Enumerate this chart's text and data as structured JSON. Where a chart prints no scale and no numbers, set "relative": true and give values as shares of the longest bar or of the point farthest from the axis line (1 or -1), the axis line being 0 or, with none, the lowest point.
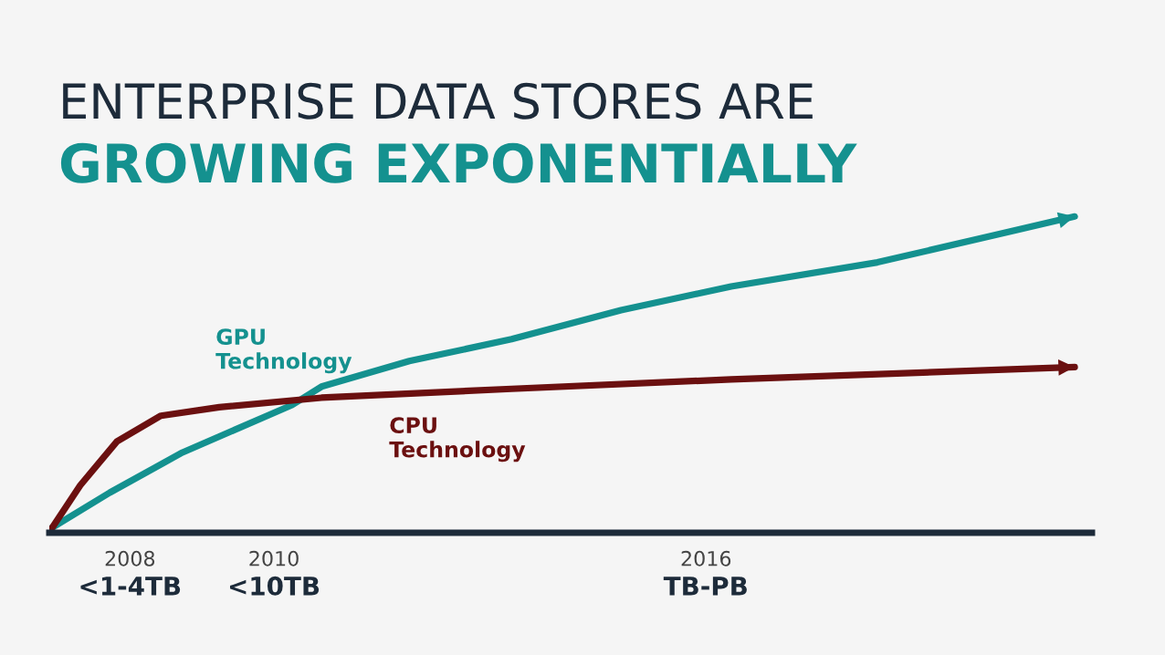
{
  "chart_data": {
    "type": "line",
    "title": "ENTERPRISE DATA STORES ARE",
    "subtitle": "GROWING EXPONENTIALLY",
    "relative": true,
    "xlim": [
      2006.88,
      2021.36
    ],
    "xticks": [
      2008,
      2010,
      2016
    ],
    "annotations": [
      "<1-4TB",
      "<10TB",
      "TB-PB"
    ],
    "series": [
      {
        "name": "GPU\nTechnology",
        "color": "#14918f",
        "x": [
          2006.92,
          2007.72,
          2008.73,
          2010.25,
          2010.66,
          2011.88,
          2013.3,
          2014.82,
          2016.35,
          2018.38,
          2021.12
        ],
        "values": [
          0.016,
          0.127,
          0.254,
          0.404,
          0.462,
          0.543,
          0.612,
          0.704,
          0.779,
          0.855,
          1.0
        ]
      },
      {
        "name": "CPU\nTechnology",
        "color": "#6b1010",
        "x": [
          2006.92,
          2007.31,
          2007.82,
          2008.43,
          2009.24,
          2010.66,
          2013.3,
          2016.35,
          2021.12
        ],
        "values": [
          0.016,
          0.15,
          0.289,
          0.37,
          0.397,
          0.427,
          0.455,
          0.485,
          0.524
        ]
      }
    ],
    "grid": false,
    "legend": false,
    "marker": "none",
    "line_style": "solid"
  }
}
